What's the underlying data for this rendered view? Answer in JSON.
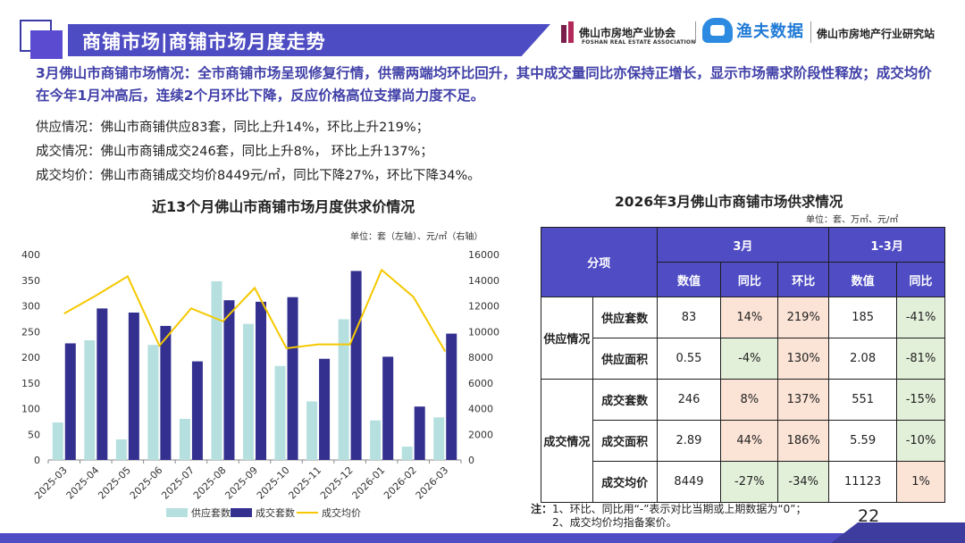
{
  "header": {
    "title": "商铺市场|商铺市场月度走势",
    "logo1_name": "佛山市房地产业协会",
    "logo1_sub": "FOSHAN REAL ESTATE ASSOCIATION",
    "logo2_name": "渔夫数据",
    "logo3_name": "佛山市房地产行业研究站"
  },
  "summary": "3月佛山市商铺市场情况：全市商铺市场呈现修复行情，供需两端均环比回升，其中成交量同比亦保持正增长，显示市场需求阶段性释放；成交均价在今年1月冲高后，连续2个月环比下降，反应价格高位支撑尚力度不足。",
  "info": [
    {
      "label": "供应情况：",
      "text": "佛山市商铺供应83套，同比上升14%，环比上升219%；"
    },
    {
      "label": "成交情况：",
      "text": "佛山市商铺成交246套，同比上升8%， 环比上升137%；"
    },
    {
      "label": "成交均价：",
      "text": "佛山市商铺成交均价8449元/㎡，同比下降27%，环比下降34%。"
    }
  ],
  "chart_data": {
    "type": "bar+line",
    "title": "近13个月佛山市商铺市场月度供求价情况",
    "unit": "单位：套（左轴）、元/㎡（右轴）",
    "categories": [
      "2025-03",
      "2025-04",
      "2025-05",
      "2025-06",
      "2025-07",
      "2025-08",
      "2025-09",
      "2025-10",
      "2025-11",
      "2025-12",
      "2026-01",
      "2026-02",
      "2026-03"
    ],
    "series": [
      {
        "name": "供应套数",
        "type": "bar",
        "axis": "left",
        "color": "#b6e0e0",
        "values": [
          73,
          233,
          40,
          224,
          80,
          348,
          265,
          183,
          114,
          274,
          77,
          26,
          83
        ]
      },
      {
        "name": "成交套数",
        "type": "bar",
        "axis": "left",
        "color": "#33308f",
        "values": [
          227,
          295,
          287,
          261,
          192,
          311,
          308,
          317,
          197,
          368,
          201,
          104,
          246
        ]
      },
      {
        "name": "成交均价",
        "type": "line",
        "axis": "right",
        "color": "#f5c800",
        "values": [
          11400,
          12800,
          14300,
          8900,
          11800,
          10800,
          13400,
          8700,
          9000,
          9000,
          14800,
          12700,
          8449
        ]
      }
    ],
    "y_left": {
      "min": 0,
      "max": 400,
      "ticks": [
        0,
        50,
        100,
        150,
        200,
        250,
        300,
        350,
        400
      ]
    },
    "y_right": {
      "min": 0,
      "max": 16000,
      "ticks": [
        0,
        2000,
        4000,
        6000,
        8000,
        10000,
        12000,
        14000,
        16000
      ]
    },
    "legend_position": "bottom",
    "grid": false
  },
  "table": {
    "title": "2026年3月佛山市商铺市场供求情况",
    "unit": "单位：套、万㎡、元/㎡",
    "col_item": "分项",
    "group_march": "3月",
    "group_q1": "1-3月",
    "sub_headers": [
      "数值",
      "同比",
      "环比",
      "数值",
      "同比"
    ],
    "cat_supply": "供应情况",
    "cat_deal": "成交情况",
    "rows": [
      {
        "name": "供应套数",
        "m_val": "83",
        "m_yoy": "14%",
        "m_mom": "219%",
        "q_val": "185",
        "q_yoy": "-41%"
      },
      {
        "name": "供应面积",
        "m_val": "0.55",
        "m_yoy": "-4%",
        "m_mom": "130%",
        "q_val": "2.08",
        "q_yoy": "-81%"
      },
      {
        "name": "成交套数",
        "m_val": "246",
        "m_yoy": "8%",
        "m_mom": "137%",
        "q_val": "551",
        "q_yoy": "-15%"
      },
      {
        "name": "成交面积",
        "m_val": "2.89",
        "m_yoy": "44%",
        "m_mom": "186%",
        "q_val": "5.59",
        "q_yoy": "-10%"
      },
      {
        "name": "成交均价",
        "m_val": "8449",
        "m_yoy": "-27%",
        "m_mom": "-34%",
        "q_val": "11123",
        "q_yoy": "1%"
      }
    ],
    "colors": {
      "increase": "#fbe3d6",
      "decrease": "#e2efd9",
      "header": "#4f4cc4"
    }
  },
  "note": {
    "label": "注：",
    "line1": "1、环比、同比用“-”表示对比当期或上期数据为“0”；",
    "line2": "2、成交均价均指备案价。"
  },
  "page_number": "22"
}
